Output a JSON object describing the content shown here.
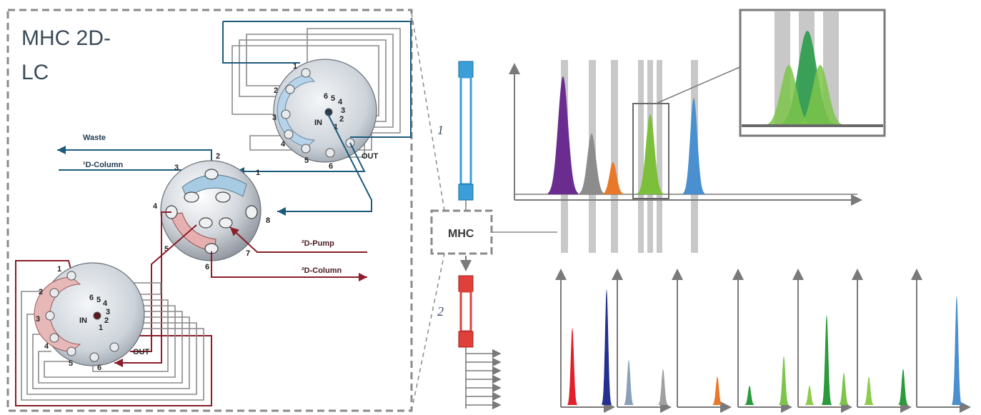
{
  "title": {
    "line1": "MHC 2D-",
    "line2": "LC"
  },
  "labels": {
    "waste": "Waste",
    "first_column": "¹D-Column",
    "second_pump": "²D-Pump",
    "second_column": "²D-Column",
    "in": "IN",
    "out": "OUT",
    "mhc": "MHC",
    "dim1": "1",
    "dim2": "2"
  },
  "central_valve_ports": [
    "1",
    "2",
    "3",
    "4",
    "5",
    "6",
    "7",
    "8"
  ],
  "deck_ports_outer": [
    "1",
    "2",
    "3",
    "4",
    "5",
    "6"
  ],
  "deck_ports_inner": [
    "6",
    "5",
    "4",
    "3",
    "2",
    "1"
  ],
  "colors": {
    "blue_line": "#1e5a7c",
    "red_line": "#8a1e2a",
    "gray_line": "#8a8a8a",
    "column_blue": "#3a9fd8",
    "column_red": "#e0403a",
    "dash": "#8a8a8a"
  },
  "first_dimension_peaks": [
    {
      "color": "#6a2c8f"
    },
    {
      "color": "#8c8c8c"
    },
    {
      "color": "#e8782a"
    },
    {
      "color": "#7cbf3a"
    },
    {
      "color": "#4a8fd0"
    }
  ],
  "second_dimension_panels": [
    {
      "peaks": [
        {
          "color": "#e0202a",
          "value": 0.6
        },
        {
          "color": "#23308f",
          "value": 0.9
        }
      ]
    },
    {
      "peaks": [
        {
          "color": "#8aa0b8",
          "value": 0.35
        },
        {
          "color": "#a0a0a0",
          "value": 0.28
        }
      ]
    },
    {
      "peaks": [
        {
          "color": "#e8782a",
          "value": 0.22
        }
      ]
    },
    {
      "peaks": [
        {
          "color": "#2a9a3a",
          "value": 0.15
        },
        {
          "color": "#7cc44a",
          "value": 0.38
        }
      ]
    },
    {
      "peaks": [
        {
          "color": "#8ccc4a",
          "value": 0.15
        },
        {
          "color": "#2a9a3a",
          "value": 0.7
        },
        {
          "color": "#7cc44a",
          "value": 0.25
        }
      ]
    },
    {
      "peaks": [
        {
          "color": "#8ccc4a",
          "value": 0.22
        },
        {
          "color": "#2a9a3a",
          "value": 0.28
        }
      ]
    },
    {
      "peaks": [
        {
          "color": "#4a8fd0",
          "value": 0.85
        }
      ]
    }
  ]
}
